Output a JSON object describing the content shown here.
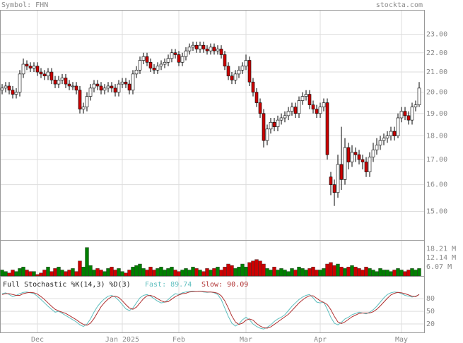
{
  "chart_data": [
    {
      "type": "candlestick",
      "title": "Symbol: FHN",
      "source": "stockta.com",
      "categories": [
        null,
        null,
        null,
        null,
        null,
        null,
        null,
        null,
        null,
        null,
        "Dec",
        null,
        null,
        null,
        null,
        null,
        null,
        null,
        null,
        null,
        null,
        null,
        null,
        null,
        null,
        null,
        null,
        null,
        null,
        null,
        null,
        null,
        null,
        null,
        "Jan 2025",
        null,
        null,
        null,
        null,
        null,
        null,
        null,
        null,
        null,
        null,
        null,
        null,
        null,
        null,
        null,
        "Feb",
        null,
        null,
        null,
        null,
        null,
        null,
        null,
        null,
        null,
        null,
        null,
        null,
        null,
        null,
        null,
        null,
        null,
        null,
        "Mar",
        null,
        null,
        null,
        null,
        null,
        null,
        null,
        null,
        null,
        null,
        null,
        null,
        null,
        null,
        null,
        null,
        null,
        null,
        null,
        null,
        "Apr",
        null,
        null,
        null,
        null,
        null,
        null,
        null,
        null,
        null,
        null,
        null,
        null,
        null,
        null,
        null,
        null,
        null,
        null,
        null,
        null,
        null,
        null,
        "May",
        null,
        null,
        null,
        null,
        null
      ],
      "open": [
        20.1,
        20.2,
        20.3,
        20.1,
        19.9,
        20.0,
        20.9,
        21.4,
        21.3,
        21.2,
        21.3,
        21.0,
        20.9,
        20.8,
        21.0,
        20.6,
        20.4,
        20.6,
        20.7,
        20.4,
        20.3,
        20.3,
        20.1,
        19.2,
        19.3,
        19.8,
        20.2,
        20.4,
        20.3,
        20.1,
        20.2,
        20.3,
        20.2,
        20.0,
        20.4,
        20.5,
        20.4,
        20.1,
        20.9,
        21.1,
        21.6,
        21.8,
        21.5,
        21.2,
        21.1,
        21.3,
        21.4,
        21.5,
        21.7,
        22.0,
        21.9,
        21.5,
        21.8,
        22.1,
        22.3,
        22.4,
        22.2,
        22.4,
        22.2,
        22.1,
        22.3,
        22.1,
        22.2,
        21.9,
        21.3,
        20.8,
        20.6,
        20.9,
        21.1,
        21.3,
        21.6,
        20.5,
        20.0,
        19.5,
        19.0,
        17.8,
        18.3,
        18.6,
        18.4,
        18.7,
        18.8,
        18.9,
        19.1,
        19.3,
        19.0,
        19.6,
        19.8,
        19.9,
        19.4,
        19.2,
        19.0,
        19.3,
        19.5,
        16.3,
        16.0,
        15.7,
        16.8,
        16.2,
        17.5,
        16.9,
        17.3,
        17.2,
        17.0,
        16.9,
        16.5,
        17.1,
        17.4,
        17.6,
        17.8,
        17.9,
        18.0,
        18.2,
        18.0,
        18.8,
        19.1,
        18.9,
        18.7,
        19.3,
        19.4
      ],
      "high": [
        20.4,
        20.5,
        20.5,
        20.3,
        20.2,
        21.1,
        21.7,
        21.6,
        21.5,
        21.5,
        21.5,
        21.2,
        21.1,
        21.2,
        21.2,
        20.8,
        20.8,
        20.9,
        20.9,
        20.6,
        20.5,
        20.5,
        20.3,
        19.5,
        20.0,
        20.4,
        20.6,
        20.6,
        20.5,
        20.4,
        20.5,
        20.5,
        20.4,
        20.6,
        20.7,
        20.7,
        20.6,
        21.1,
        21.3,
        21.8,
        22.0,
        22.0,
        21.7,
        21.4,
        21.5,
        21.6,
        21.7,
        21.9,
        22.2,
        22.2,
        22.1,
        22.0,
        22.3,
        22.5,
        22.6,
        22.6,
        22.6,
        22.6,
        22.4,
        22.5,
        22.5,
        22.4,
        22.4,
        22.1,
        21.5,
        21.0,
        21.1,
        21.3,
        21.5,
        21.9,
        21.8,
        20.7,
        20.2,
        19.7,
        19.2,
        18.5,
        18.8,
        18.8,
        18.9,
        19.0,
        19.1,
        19.3,
        19.5,
        19.5,
        19.8,
        20.0,
        20.1,
        20.1,
        19.6,
        19.4,
        19.5,
        19.7,
        19.7,
        16.5,
        16.2,
        17.2,
        18.4,
        17.9,
        17.7,
        17.6,
        17.5,
        17.4,
        17.2,
        17.1,
        17.3,
        17.7,
        17.9,
        18.0,
        18.1,
        18.2,
        18.4,
        18.4,
        19.0,
        19.3,
        19.3,
        19.1,
        19.5,
        19.6,
        20.5
      ],
      "low": [
        19.9,
        20.0,
        19.9,
        19.7,
        19.7,
        19.8,
        20.7,
        21.1,
        21.0,
        21.0,
        20.8,
        20.7,
        20.6,
        20.6,
        20.4,
        20.2,
        20.2,
        20.4,
        20.2,
        20.1,
        20.1,
        19.9,
        19.0,
        19.0,
        19.1,
        19.6,
        20.0,
        20.1,
        19.9,
        19.9,
        20.0,
        20.0,
        19.8,
        19.8,
        20.2,
        20.2,
        19.9,
        19.9,
        20.7,
        20.9,
        21.4,
        21.3,
        21.0,
        20.9,
        20.9,
        21.1,
        21.2,
        21.3,
        21.5,
        21.7,
        21.3,
        21.3,
        21.6,
        21.9,
        22.1,
        22.0,
        22.0,
        22.0,
        21.9,
        21.9,
        21.9,
        21.9,
        21.7,
        21.1,
        20.6,
        20.4,
        20.4,
        20.7,
        20.9,
        21.1,
        20.3,
        19.8,
        19.3,
        18.8,
        17.5,
        17.6,
        18.1,
        18.2,
        18.2,
        18.5,
        18.6,
        18.7,
        18.9,
        18.8,
        18.8,
        19.4,
        19.6,
        19.2,
        19.0,
        18.8,
        18.8,
        19.1,
        17.0,
        15.6,
        15.2,
        15.5,
        15.8,
        16.0,
        16.6,
        16.7,
        16.9,
        16.8,
        16.6,
        16.3,
        16.3,
        16.9,
        17.2,
        17.4,
        17.6,
        17.7,
        17.8,
        17.8,
        17.9,
        18.6,
        18.7,
        18.5,
        18.5,
        19.1,
        19.3
      ],
      "close": [
        20.2,
        20.3,
        20.1,
        19.9,
        20.0,
        20.9,
        21.4,
        21.3,
        21.2,
        21.3,
        21.0,
        20.9,
        20.8,
        21.0,
        20.6,
        20.4,
        20.6,
        20.7,
        20.4,
        20.3,
        20.3,
        20.1,
        19.2,
        19.3,
        19.8,
        20.2,
        20.4,
        20.3,
        20.1,
        20.2,
        20.3,
        20.2,
        20.0,
        20.4,
        20.5,
        20.4,
        20.1,
        20.9,
        21.1,
        21.6,
        21.8,
        21.5,
        21.2,
        21.1,
        21.3,
        21.4,
        21.5,
        21.7,
        22.0,
        21.9,
        21.5,
        21.8,
        22.1,
        22.3,
        22.4,
        22.2,
        22.4,
        22.2,
        22.1,
        22.3,
        22.1,
        22.2,
        21.9,
        21.3,
        20.8,
        20.6,
        20.9,
        21.1,
        21.3,
        21.6,
        20.5,
        20.0,
        19.5,
        19.0,
        17.8,
        18.3,
        18.6,
        18.4,
        18.7,
        18.8,
        18.9,
        19.1,
        19.3,
        19.0,
        19.6,
        19.8,
        19.9,
        19.4,
        19.2,
        19.0,
        19.3,
        19.5,
        17.2,
        16.0,
        15.7,
        16.8,
        16.2,
        17.5,
        16.9,
        17.3,
        17.2,
        17.0,
        16.9,
        16.5,
        17.1,
        17.4,
        17.6,
        17.8,
        17.9,
        18.0,
        18.2,
        18.0,
        18.8,
        19.1,
        18.9,
        18.7,
        19.3,
        19.4,
        20.2
      ],
      "ylim": [
        14.0,
        24.4
      ],
      "log_scale": true,
      "grid": true,
      "yticks": [
        {
          "value": 15,
          "label": "15.00"
        },
        {
          "value": 16,
          "label": "16.00"
        },
        {
          "value": 17,
          "label": "17.00"
        },
        {
          "value": 18,
          "label": "18.00"
        },
        {
          "value": 19,
          "label": "19.00"
        },
        {
          "value": 20,
          "label": "20.00"
        },
        {
          "value": 21,
          "label": "21.00"
        },
        {
          "value": 22,
          "label": "22.00"
        },
        {
          "value": 23,
          "label": "23.00"
        }
      ],
      "up_color": "#ffffff",
      "down_color": "#cc0000"
    },
    {
      "type": "bar",
      "values": [
        4,
        3,
        2,
        4,
        3,
        5,
        6,
        4,
        3,
        3,
        1,
        2,
        4,
        6,
        3,
        5,
        6,
        4,
        3,
        4,
        5,
        3,
        10,
        6,
        19,
        7,
        4,
        5,
        4,
        3,
        5,
        6,
        4,
        5,
        3,
        2,
        4,
        6,
        7,
        8,
        5,
        4,
        6,
        4,
        5,
        6,
        4,
        5,
        6,
        4,
        3,
        4,
        5,
        4,
        6,
        5,
        4,
        3,
        5,
        4,
        5,
        6,
        4,
        6,
        8,
        7,
        5,
        6,
        8,
        6,
        9,
        10,
        11,
        10,
        8,
        5,
        4,
        6,
        4,
        5,
        4,
        3,
        5,
        4,
        6,
        5,
        4,
        5,
        6,
        4,
        4,
        5,
        8,
        9,
        7,
        8,
        6,
        5,
        6,
        7,
        6,
        5,
        4,
        6,
        5,
        4,
        3,
        5,
        4,
        4,
        3,
        4,
        5,
        4,
        3,
        4,
        5,
        4,
        5
      ],
      "ylim": [
        0,
        24
      ],
      "yticks": [
        {
          "value": 6.07,
          "label": "6.07 M"
        },
        {
          "value": 12.14,
          "label": "12.14 M"
        },
        {
          "value": 18.21,
          "label": "18.21 M"
        }
      ],
      "up_color": "#008000",
      "down_color": "#cc0000"
    },
    {
      "type": "line",
      "title": "Full Stochastic %K(14,3) %D(3)",
      "series": [
        {
          "name": "Fast:",
          "color": "#5fbfbf",
          "values": [
            92,
            94,
            90,
            85,
            88,
            92,
            95,
            96,
            94,
            92,
            86,
            78,
            70,
            62,
            55,
            48,
            50,
            45,
            40,
            35,
            30,
            25,
            18,
            14,
            20,
            32,
            48,
            62,
            72,
            80,
            86,
            88,
            84,
            76,
            66,
            56,
            52,
            58,
            70,
            82,
            88,
            90,
            86,
            80,
            74,
            70,
            72,
            78,
            86,
            92,
            90,
            94,
            96,
            97,
            98,
            97,
            98,
            96,
            95,
            96,
            94,
            90,
            78,
            58,
            38,
            22,
            15,
            20,
            30,
            36,
            30,
            20,
            14,
            10,
            8,
            12,
            18,
            26,
            32,
            36,
            42,
            52,
            62,
            70,
            78,
            84,
            88,
            90,
            82,
            72,
            70,
            72,
            55,
            36,
            22,
            18,
            24,
            32,
            36,
            42,
            45,
            48,
            46,
            44,
            48,
            54,
            62,
            72,
            82,
            90,
            94,
            96,
            95,
            92,
            88,
            86,
            84,
            86,
            89.74
          ]
        },
        {
          "name": "Slow:",
          "color": "#b03030",
          "values": [
            90,
            92,
            92,
            90,
            88,
            88,
            92,
            94,
            95,
            94,
            91,
            85,
            78,
            70,
            62,
            55,
            51,
            48,
            45,
            40,
            35,
            30,
            24,
            19,
            17,
            22,
            33,
            47,
            61,
            71,
            79,
            85,
            86,
            83,
            75,
            66,
            58,
            55,
            60,
            70,
            80,
            87,
            88,
            85,
            80,
            75,
            72,
            73,
            79,
            85,
            89,
            92,
            93,
            96,
            97,
            97,
            98,
            97,
            96,
            96,
            95,
            93,
            87,
            75,
            58,
            39,
            25,
            19,
            22,
            29,
            32,
            29,
            21,
            15,
            11,
            10,
            13,
            19,
            25,
            31,
            37,
            43,
            52,
            61,
            70,
            77,
            83,
            87,
            87,
            81,
            75,
            71,
            66,
            54,
            38,
            25,
            21,
            25,
            31,
            37,
            41,
            45,
            46,
            46,
            46,
            49,
            55,
            63,
            72,
            81,
            89,
            93,
            95,
            94,
            92,
            89,
            86,
            85,
            90.09
          ]
        }
      ],
      "ylim": [
        0,
        134
      ],
      "yticks": [
        20,
        50,
        80
      ],
      "grid": true
    }
  ]
}
